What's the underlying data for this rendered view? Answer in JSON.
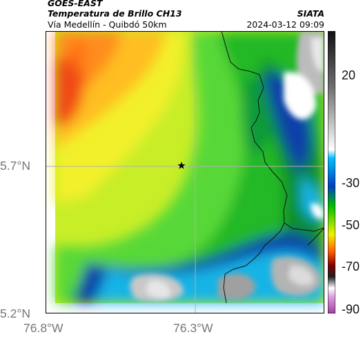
{
  "header": {
    "satellite": "GOES-EAST",
    "product": "Temperatura de Brillo CH13",
    "source": "SIATA",
    "region": "Vía Medellín - Quibdó 50km",
    "datetime": "2024-03-12 09:09"
  },
  "map": {
    "lat_ticks": [
      "5.7°N",
      "5.2°N"
    ],
    "lon_ticks": [
      "76.8°W",
      "76.3°W"
    ],
    "marker": "star-marker"
  },
  "colorbar": {
    "ticks": [
      "20",
      "-30",
      "-50",
      "-70",
      "-90"
    ],
    "colors": [
      "#111111",
      "#777777",
      "#ffffff",
      "#00c0ff",
      "#0040c0",
      "#00c000",
      "#f0f000",
      "#ff6000",
      "#800000",
      "#202020",
      "#ffffff",
      "#a040a0"
    ]
  }
}
